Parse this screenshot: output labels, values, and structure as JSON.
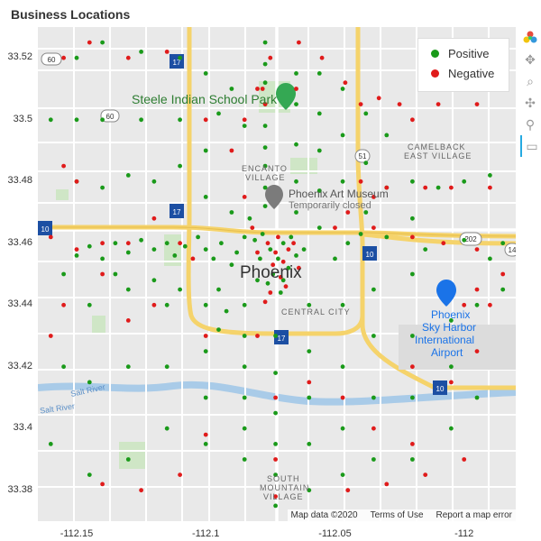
{
  "title": "Business Locations",
  "chart_data": {
    "type": "scatter",
    "xlim": [
      -112.165,
      -111.98
    ],
    "ylim": [
      33.37,
      33.53
    ],
    "x_ticks": [
      "-112.15",
      "-112.1",
      "-112.05",
      "-112"
    ],
    "x_tick_values": [
      -112.15,
      -112.1,
      -112.05,
      -112
    ],
    "y_ticks": [
      "33.52",
      "33.5",
      "33.48",
      "33.46",
      "33.44",
      "33.42",
      "33.4",
      "33.38"
    ],
    "y_tick_values": [
      33.52,
      33.5,
      33.48,
      33.46,
      33.44,
      33.42,
      33.4,
      33.38
    ],
    "legend_position": "top-right",
    "series": [
      {
        "name": "Positive",
        "color": "#1a9a1a",
        "points": [
          [
            -112.078,
            33.463
          ],
          [
            -112.075,
            33.458
          ],
          [
            -112.072,
            33.455
          ],
          [
            -112.07,
            33.46
          ],
          [
            -112.068,
            33.452
          ],
          [
            -112.074,
            33.45
          ],
          [
            -112.076,
            33.447
          ],
          [
            -112.071,
            33.444
          ],
          [
            -112.079,
            33.455
          ],
          [
            -112.081,
            33.461
          ],
          [
            -112.065,
            33.456
          ],
          [
            -112.062,
            33.458
          ],
          [
            -112.085,
            33.462
          ],
          [
            -112.088,
            33.457
          ],
          [
            -112.09,
            33.453
          ],
          [
            -112.094,
            33.46
          ],
          [
            -112.097,
            33.455
          ],
          [
            -112.1,
            33.458
          ],
          [
            -112.103,
            33.462
          ],
          [
            -112.108,
            33.459
          ],
          [
            -112.112,
            33.456
          ],
          [
            -112.115,
            33.46
          ],
          [
            -112.12,
            33.458
          ],
          [
            -112.125,
            33.461
          ],
          [
            -112.13,
            33.457
          ],
          [
            -112.135,
            33.46
          ],
          [
            -112.14,
            33.455
          ],
          [
            -112.145,
            33.459
          ],
          [
            -112.15,
            33.456
          ],
          [
            -112.077,
            33.472
          ],
          [
            -112.077,
            33.478
          ],
          [
            -112.077,
            33.485
          ],
          [
            -112.077,
            33.491
          ],
          [
            -112.077,
            33.498
          ],
          [
            -112.077,
            33.505
          ],
          [
            -112.077,
            33.512
          ],
          [
            -112.077,
            33.518
          ],
          [
            -112.077,
            33.525
          ],
          [
            -112.065,
            33.47
          ],
          [
            -112.065,
            33.48
          ],
          [
            -112.065,
            33.492
          ],
          [
            -112.065,
            33.505
          ],
          [
            -112.065,
            33.515
          ],
          [
            -112.056,
            33.465
          ],
          [
            -112.056,
            33.477
          ],
          [
            -112.056,
            33.49
          ],
          [
            -112.056,
            33.502
          ],
          [
            -112.056,
            33.515
          ],
          [
            -112.047,
            33.48
          ],
          [
            -112.047,
            33.495
          ],
          [
            -112.047,
            33.51
          ],
          [
            -112.038,
            33.47
          ],
          [
            -112.038,
            33.486
          ],
          [
            -112.038,
            33.502
          ],
          [
            -112.03,
            33.478
          ],
          [
            -112.03,
            33.495
          ],
          [
            -112.02,
            33.48
          ],
          [
            -112.02,
            33.468
          ],
          [
            -112.01,
            33.478
          ],
          [
            -112.0,
            33.48
          ],
          [
            -111.99,
            33.482
          ],
          [
            -112.1,
            33.49
          ],
          [
            -112.1,
            33.475
          ],
          [
            -112.11,
            33.485
          ],
          [
            -112.12,
            33.48
          ],
          [
            -112.13,
            33.482
          ],
          [
            -112.14,
            33.478
          ],
          [
            -112.15,
            33.48
          ],
          [
            -112.16,
            33.5
          ],
          [
            -112.15,
            33.5
          ],
          [
            -112.14,
            33.5
          ],
          [
            -112.125,
            33.5
          ],
          [
            -112.11,
            33.5
          ],
          [
            -112.095,
            33.502
          ],
          [
            -112.085,
            33.498
          ],
          [
            -112.09,
            33.51
          ],
          [
            -112.1,
            33.515
          ],
          [
            -112.11,
            33.52
          ],
          [
            -112.125,
            33.522
          ],
          [
            -112.14,
            33.525
          ],
          [
            -112.15,
            33.52
          ],
          [
            -112.085,
            33.44
          ],
          [
            -112.085,
            33.43
          ],
          [
            -112.085,
            33.42
          ],
          [
            -112.085,
            33.41
          ],
          [
            -112.085,
            33.4
          ],
          [
            -112.085,
            33.39
          ],
          [
            -112.073,
            33.43
          ],
          [
            -112.073,
            33.418
          ],
          [
            -112.073,
            33.405
          ],
          [
            -112.073,
            33.395
          ],
          [
            -112.073,
            33.385
          ],
          [
            -112.073,
            33.375
          ],
          [
            -112.06,
            33.44
          ],
          [
            -112.06,
            33.425
          ],
          [
            -112.06,
            33.41
          ],
          [
            -112.06,
            33.395
          ],
          [
            -112.06,
            33.38
          ],
          [
            -112.047,
            33.44
          ],
          [
            -112.047,
            33.42
          ],
          [
            -112.047,
            33.4
          ],
          [
            -112.047,
            33.385
          ],
          [
            -112.035,
            33.445
          ],
          [
            -112.035,
            33.43
          ],
          [
            -112.035,
            33.41
          ],
          [
            -112.035,
            33.39
          ],
          [
            -112.02,
            33.45
          ],
          [
            -112.02,
            33.43
          ],
          [
            -112.02,
            33.41
          ],
          [
            -112.02,
            33.39
          ],
          [
            -112.005,
            33.435
          ],
          [
            -112.005,
            33.42
          ],
          [
            -112.005,
            33.4
          ],
          [
            -111.995,
            33.44
          ],
          [
            -111.995,
            33.41
          ],
          [
            -111.985,
            33.445
          ],
          [
            -112.1,
            33.44
          ],
          [
            -112.1,
            33.425
          ],
          [
            -112.1,
            33.41
          ],
          [
            -112.1,
            33.395
          ],
          [
            -112.115,
            33.44
          ],
          [
            -112.115,
            33.42
          ],
          [
            -112.115,
            33.4
          ],
          [
            -112.13,
            33.445
          ],
          [
            -112.13,
            33.42
          ],
          [
            -112.13,
            33.39
          ],
          [
            -112.145,
            33.44
          ],
          [
            -112.145,
            33.415
          ],
          [
            -112.145,
            33.385
          ],
          [
            -112.155,
            33.45
          ],
          [
            -112.155,
            33.42
          ],
          [
            -112.16,
            33.395
          ],
          [
            -112.092,
            33.438
          ],
          [
            -112.095,
            33.432
          ],
          [
            -112.11,
            33.445
          ],
          [
            -112.12,
            33.448
          ],
          [
            -112.135,
            33.45
          ],
          [
            -112.05,
            33.455
          ],
          [
            -112.045,
            33.46
          ],
          [
            -112.04,
            33.463
          ],
          [
            -112.03,
            33.462
          ],
          [
            -112.015,
            33.458
          ],
          [
            -112.0,
            33.461
          ],
          [
            -111.99,
            33.455
          ],
          [
            -111.985,
            33.46
          ],
          [
            -112.08,
            33.448
          ],
          [
            -112.07,
            33.448
          ],
          [
            -112.067,
            33.462
          ],
          [
            -112.083,
            33.468
          ],
          [
            -112.09,
            33.47
          ],
          [
            -112.095,
            33.445
          ]
        ]
      },
      {
        "name": "Negative",
        "color": "#e01b1b",
        "points": [
          [
            -112.073,
            33.457
          ],
          [
            -112.07,
            33.454
          ],
          [
            -112.072,
            33.462
          ],
          [
            -112.076,
            33.46
          ],
          [
            -112.068,
            33.458
          ],
          [
            -112.074,
            33.453
          ],
          [
            -112.071,
            33.449
          ],
          [
            -112.069,
            33.446
          ],
          [
            -112.075,
            33.444
          ],
          [
            -112.077,
            33.441
          ],
          [
            -112.066,
            33.46
          ],
          [
            -112.064,
            33.452
          ],
          [
            -112.08,
            33.457
          ],
          [
            -112.082,
            33.465
          ],
          [
            -112.077,
            33.505
          ],
          [
            -112.078,
            33.51
          ],
          [
            -112.065,
            33.51
          ],
          [
            -112.064,
            33.525
          ],
          [
            -112.055,
            33.52
          ],
          [
            -112.046,
            33.512
          ],
          [
            -112.04,
            33.505
          ],
          [
            -112.033,
            33.507
          ],
          [
            -112.025,
            33.505
          ],
          [
            -112.02,
            33.5
          ],
          [
            -112.01,
            33.505
          ],
          [
            -112.005,
            33.51
          ],
          [
            -111.995,
            33.505
          ],
          [
            -112.03,
            33.478
          ],
          [
            -112.035,
            33.475
          ],
          [
            -112.04,
            33.48
          ],
          [
            -112.015,
            33.478
          ],
          [
            -112.005,
            33.478
          ],
          [
            -111.99,
            33.478
          ],
          [
            -112.15,
            33.48
          ],
          [
            -112.155,
            33.485
          ],
          [
            -112.12,
            33.468
          ],
          [
            -112.11,
            33.46
          ],
          [
            -112.105,
            33.455
          ],
          [
            -112.13,
            33.46
          ],
          [
            -112.14,
            33.46
          ],
          [
            -112.15,
            33.458
          ],
          [
            -112.16,
            33.462
          ],
          [
            -112.09,
            33.49
          ],
          [
            -112.085,
            33.475
          ],
          [
            -112.1,
            33.5
          ],
          [
            -112.115,
            33.522
          ],
          [
            -112.13,
            33.52
          ],
          [
            -112.145,
            33.525
          ],
          [
            -112.155,
            33.52
          ],
          [
            -112.08,
            33.43
          ],
          [
            -112.073,
            33.41
          ],
          [
            -112.073,
            33.39
          ],
          [
            -112.073,
            33.378
          ],
          [
            -112.06,
            33.415
          ],
          [
            -112.047,
            33.41
          ],
          [
            -112.035,
            33.4
          ],
          [
            -112.02,
            33.42
          ],
          [
            -112.005,
            33.415
          ],
          [
            -111.995,
            33.425
          ],
          [
            -111.99,
            33.44
          ],
          [
            -111.985,
            33.45
          ],
          [
            -111.995,
            33.445
          ],
          [
            -112.0,
            33.44
          ],
          [
            -112.1,
            33.43
          ],
          [
            -112.12,
            33.44
          ],
          [
            -112.13,
            33.435
          ],
          [
            -112.14,
            33.45
          ],
          [
            -112.155,
            33.44
          ],
          [
            -112.16,
            33.43
          ],
          [
            -112.1,
            33.398
          ],
          [
            -112.11,
            33.385
          ],
          [
            -112.125,
            33.38
          ],
          [
            -112.14,
            33.382
          ],
          [
            -112.045,
            33.38
          ],
          [
            -112.03,
            33.382
          ],
          [
            -112.02,
            33.395
          ],
          [
            -112.015,
            33.385
          ],
          [
            -112.0,
            33.39
          ],
          [
            -112.05,
            33.465
          ],
          [
            -112.045,
            33.47
          ],
          [
            -112.035,
            33.465
          ],
          [
            -112.02,
            33.462
          ],
          [
            -112.008,
            33.46
          ],
          [
            -111.995,
            33.458
          ],
          [
            -112.085,
            33.5
          ],
          [
            -112.08,
            33.51
          ],
          [
            -112.075,
            33.52
          ]
        ]
      }
    ]
  },
  "map_labels": {
    "park": "Steele Indian School Park",
    "encanto_1": "ENCANTO",
    "encanto_2": "VILLAGE",
    "museum": "Phoenix Art Museum",
    "museum_status": "Temporarily closed",
    "camelback_1": "CAMELBACK",
    "camelback_2": "EAST VILLAGE",
    "city": "Phoenix",
    "central": "CENTRAL CITY",
    "airport_1": "Phoenix",
    "airport_2": "Sky Harbor",
    "airport_3": "International",
    "airport_4": "Airport",
    "salt_river_1": "Salt River",
    "salt_river_2": "Salt River",
    "south_1": "SOUTH",
    "south_2": "MOUNTAIN",
    "south_3": "VILLAGE",
    "shield_60": "60",
    "shield_51": "51",
    "shield_202": "202",
    "shield_10a": "10",
    "shield_10b": "10",
    "shield_10c": "10",
    "shield_17a": "17",
    "shield_17b": "17",
    "shield_17c": "17",
    "shield_14": "14"
  },
  "attribution": {
    "map_data": "Map data ©2020",
    "terms": "Terms of Use",
    "report": "Report a map error"
  },
  "toolbar": {
    "icons": [
      "bokeh-logo-icon",
      "pan-icon",
      "zoom-icon",
      "move-icon",
      "wheel-zoom-icon",
      "hover-icon"
    ]
  }
}
